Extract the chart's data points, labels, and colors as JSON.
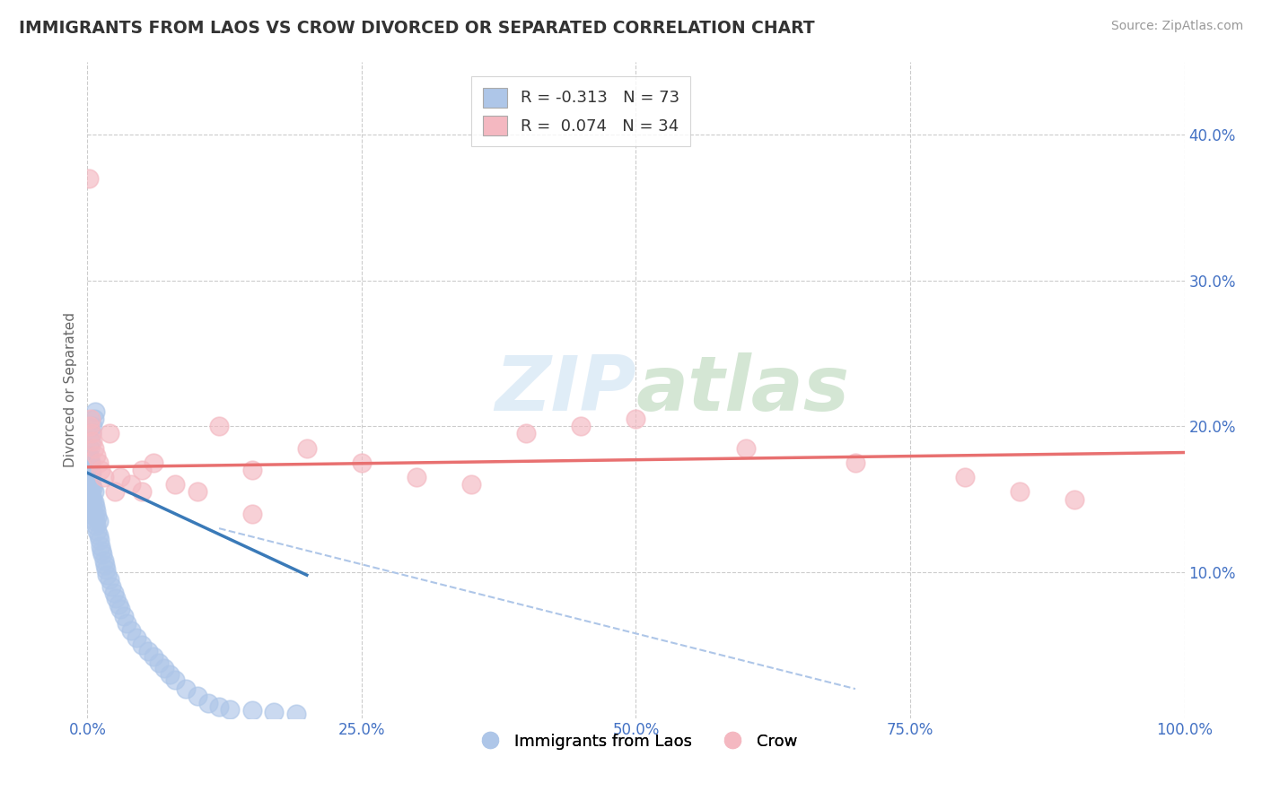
{
  "title": "IMMIGRANTS FROM LAOS VS CROW DIVORCED OR SEPARATED CORRELATION CHART",
  "source": "Source: ZipAtlas.com",
  "ylabel": "Divorced or Separated",
  "xmin": 0.0,
  "xmax": 1.0,
  "ymin": 0.0,
  "ymax": 0.45,
  "yticks": [
    0.1,
    0.2,
    0.3,
    0.4
  ],
  "ytick_labels": [
    "10.0%",
    "20.0%",
    "30.0%",
    "40.0%"
  ],
  "xticks": [
    0.0,
    0.25,
    0.5,
    0.75,
    1.0
  ],
  "xtick_labels": [
    "0.0%",
    "25.0%",
    "50.0%",
    "75.0%",
    "100.0%"
  ],
  "legend_entries": [
    {
      "label": "Immigrants from Laos",
      "color": "#aec6e8",
      "r": -0.313,
      "n": 73
    },
    {
      "label": "Crow",
      "color": "#f4b8c1",
      "r": 0.074,
      "n": 34
    }
  ],
  "background_color": "#ffffff",
  "grid_color": "#cccccc",
  "blue_scatter_x": [
    0.001,
    0.001,
    0.001,
    0.001,
    0.002,
    0.002,
    0.002,
    0.002,
    0.002,
    0.002,
    0.003,
    0.003,
    0.003,
    0.003,
    0.003,
    0.004,
    0.004,
    0.004,
    0.004,
    0.005,
    0.005,
    0.005,
    0.006,
    0.006,
    0.006,
    0.007,
    0.007,
    0.008,
    0.008,
    0.009,
    0.009,
    0.01,
    0.01,
    0.011,
    0.012,
    0.013,
    0.014,
    0.015,
    0.016,
    0.017,
    0.018,
    0.02,
    0.022,
    0.024,
    0.026,
    0.028,
    0.03,
    0.033,
    0.036,
    0.04,
    0.045,
    0.05,
    0.055,
    0.06,
    0.065,
    0.07,
    0.075,
    0.08,
    0.09,
    0.1,
    0.11,
    0.12,
    0.13,
    0.15,
    0.17,
    0.19,
    0.001,
    0.002,
    0.003,
    0.004,
    0.005,
    0.006,
    0.007
  ],
  "blue_scatter_y": [
    0.155,
    0.16,
    0.165,
    0.17,
    0.15,
    0.158,
    0.162,
    0.168,
    0.172,
    0.178,
    0.148,
    0.155,
    0.16,
    0.167,
    0.175,
    0.145,
    0.152,
    0.16,
    0.168,
    0.142,
    0.15,
    0.158,
    0.138,
    0.148,
    0.155,
    0.135,
    0.145,
    0.132,
    0.142,
    0.128,
    0.138,
    0.125,
    0.135,
    0.122,
    0.118,
    0.115,
    0.112,
    0.108,
    0.105,
    0.102,
    0.098,
    0.095,
    0.09,
    0.086,
    0.082,
    0.078,
    0.075,
    0.07,
    0.065,
    0.06,
    0.055,
    0.05,
    0.046,
    0.042,
    0.038,
    0.034,
    0.03,
    0.026,
    0.02,
    0.015,
    0.01,
    0.008,
    0.006,
    0.005,
    0.004,
    0.003,
    0.18,
    0.185,
    0.19,
    0.195,
    0.2,
    0.205,
    0.21
  ],
  "pink_scatter_x": [
    0.001,
    0.002,
    0.003,
    0.004,
    0.005,
    0.006,
    0.008,
    0.01,
    0.012,
    0.015,
    0.02,
    0.025,
    0.03,
    0.04,
    0.05,
    0.06,
    0.08,
    0.1,
    0.12,
    0.15,
    0.2,
    0.25,
    0.3,
    0.35,
    0.4,
    0.5,
    0.6,
    0.7,
    0.8,
    0.85,
    0.9,
    0.05,
    0.45,
    0.15
  ],
  "pink_scatter_y": [
    0.37,
    0.2,
    0.205,
    0.195,
    0.19,
    0.185,
    0.18,
    0.175,
    0.17,
    0.165,
    0.195,
    0.155,
    0.165,
    0.16,
    0.155,
    0.175,
    0.16,
    0.155,
    0.2,
    0.17,
    0.185,
    0.175,
    0.165,
    0.16,
    0.195,
    0.205,
    0.185,
    0.175,
    0.165,
    0.155,
    0.15,
    0.17,
    0.2,
    0.14
  ],
  "blue_line_x": [
    0.0,
    0.2
  ],
  "blue_line_y": [
    0.168,
    0.098
  ],
  "pink_line_x": [
    0.0,
    1.0
  ],
  "pink_line_y": [
    0.172,
    0.182
  ],
  "dashed_line_x": [
    0.12,
    0.7
  ],
  "dashed_line_y": [
    0.13,
    0.02
  ]
}
